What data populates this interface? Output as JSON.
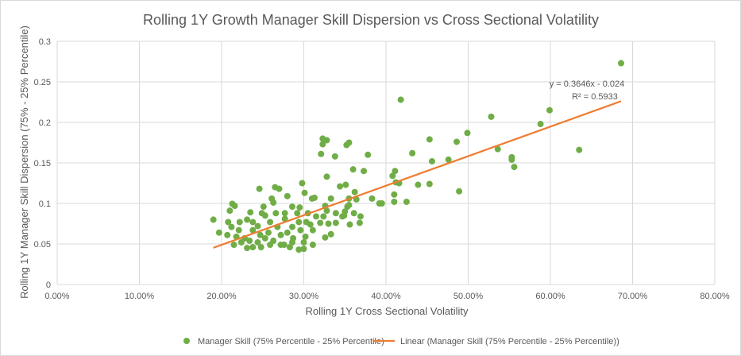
{
  "chart_data": {
    "type": "scatter",
    "title": "Rolling 1Y Growth Manager Skill Dispersion vs Cross Sectional Volatility",
    "xlabel": "Rolling 1Y Cross Sectional Volatility",
    "ylabel": "Rolling 1Y Manager Skill Dispersion (75% - 25% Percentile)",
    "xlim": [
      0,
      0.8
    ],
    "ylim": [
      0,
      0.3
    ],
    "xticks": [
      0,
      0.1,
      0.2,
      0.3,
      0.4,
      0.5,
      0.6,
      0.7,
      0.8
    ],
    "xtick_labels": [
      "0.00%",
      "10.00%",
      "20.00%",
      "30.00%",
      "40.00%",
      "50.00%",
      "60.00%",
      "70.00%",
      "80.00%"
    ],
    "yticks": [
      0,
      0.05,
      0.1,
      0.15,
      0.2,
      0.25,
      0.3
    ],
    "ytick_labels": [
      "0",
      "0.05",
      "0.1",
      "0.15",
      "0.2",
      "0.25",
      "0.3"
    ],
    "grid": true,
    "legend_position": "bottom",
    "series": [
      {
        "name": "Manager Skill (75% Percentile - 25% Percentile)",
        "color": "#70ad47",
        "points": [
          [
            0.686,
            0.273
          ],
          [
            0.418,
            0.228
          ],
          [
            0.599,
            0.215
          ],
          [
            0.588,
            0.198
          ],
          [
            0.528,
            0.207
          ],
          [
            0.635,
            0.166
          ],
          [
            0.499,
            0.187
          ],
          [
            0.486,
            0.176
          ],
          [
            0.453,
            0.179
          ],
          [
            0.432,
            0.162
          ],
          [
            0.536,
            0.167
          ],
          [
            0.553,
            0.157
          ],
          [
            0.553,
            0.154
          ],
          [
            0.556,
            0.145
          ],
          [
            0.456,
            0.152
          ],
          [
            0.476,
            0.154
          ],
          [
            0.411,
            0.14
          ],
          [
            0.408,
            0.134
          ],
          [
            0.412,
            0.126
          ],
          [
            0.416,
            0.125
          ],
          [
            0.439,
            0.123
          ],
          [
            0.453,
            0.124
          ],
          [
            0.489,
            0.115
          ],
          [
            0.41,
            0.111
          ],
          [
            0.41,
            0.102
          ],
          [
            0.425,
            0.102
          ],
          [
            0.395,
            0.1
          ],
          [
            0.323,
            0.18
          ],
          [
            0.328,
            0.178
          ],
          [
            0.323,
            0.173
          ],
          [
            0.352,
            0.172
          ],
          [
            0.355,
            0.175
          ],
          [
            0.321,
            0.161
          ],
          [
            0.338,
            0.158
          ],
          [
            0.378,
            0.16
          ],
          [
            0.36,
            0.142
          ],
          [
            0.373,
            0.14
          ],
          [
            0.328,
            0.133
          ],
          [
            0.298,
            0.125
          ],
          [
            0.344,
            0.121
          ],
          [
            0.351,
            0.123
          ],
          [
            0.301,
            0.113
          ],
          [
            0.362,
            0.114
          ],
          [
            0.246,
            0.118
          ],
          [
            0.265,
            0.12
          ],
          [
            0.27,
            0.118
          ],
          [
            0.28,
            0.109
          ],
          [
            0.261,
            0.106
          ],
          [
            0.263,
            0.101
          ],
          [
            0.31,
            0.106
          ],
          [
            0.313,
            0.107
          ],
          [
            0.333,
            0.106
          ],
          [
            0.355,
            0.106
          ],
          [
            0.364,
            0.105
          ],
          [
            0.383,
            0.106
          ],
          [
            0.392,
            0.1
          ],
          [
            0.213,
            0.0995
          ],
          [
            0.216,
            0.097
          ],
          [
            0.21,
            0.091
          ],
          [
            0.251,
            0.096
          ],
          [
            0.286,
            0.096
          ],
          [
            0.295,
            0.095
          ],
          [
            0.235,
            0.089
          ],
          [
            0.19,
            0.08
          ],
          [
            0.197,
            0.064
          ],
          [
            0.208,
            0.077
          ],
          [
            0.212,
            0.071
          ],
          [
            0.207,
            0.061
          ],
          [
            0.222,
            0.077
          ],
          [
            0.355,
            0.098
          ],
          [
            0.353,
            0.096
          ],
          [
            0.326,
            0.097
          ],
          [
            0.328,
            0.091
          ],
          [
            0.339,
            0.088
          ],
          [
            0.349,
            0.085
          ],
          [
            0.356,
            0.074
          ],
          [
            0.361,
            0.088
          ],
          [
            0.368,
            0.076
          ],
          [
            0.369,
            0.084
          ],
          [
            0.33,
            0.075
          ],
          [
            0.326,
            0.058
          ],
          [
            0.333,
            0.062
          ],
          [
            0.305,
            0.088
          ],
          [
            0.303,
            0.077
          ],
          [
            0.311,
            0.067
          ],
          [
            0.3,
            0.052
          ],
          [
            0.311,
            0.049
          ],
          [
            0.294,
            0.043
          ],
          [
            0.3,
            0.044
          ],
          [
            0.286,
            0.052
          ],
          [
            0.276,
            0.049
          ],
          [
            0.248,
            0.046
          ],
          [
            0.231,
            0.045
          ],
          [
            0.215,
            0.049
          ],
          [
            0.218,
            0.059
          ],
          [
            0.238,
            0.067
          ],
          [
            0.244,
            0.072
          ],
          [
            0.253,
            0.085
          ],
          [
            0.266,
            0.088
          ],
          [
            0.259,
            0.077
          ],
          [
            0.268,
            0.071
          ],
          [
            0.277,
            0.081
          ],
          [
            0.28,
            0.064
          ],
          [
            0.287,
            0.057
          ],
          [
            0.253,
            0.057
          ],
          [
            0.263,
            0.054
          ],
          [
            0.234,
            0.054
          ],
          [
            0.224,
            0.052
          ],
          [
            0.244,
            0.052
          ],
          [
            0.238,
            0.077
          ],
          [
            0.231,
            0.08
          ],
          [
            0.249,
            0.088
          ],
          [
            0.257,
            0.064
          ],
          [
            0.247,
            0.061
          ],
          [
            0.272,
            0.061
          ],
          [
            0.294,
            0.077
          ],
          [
            0.292,
            0.088
          ],
          [
            0.315,
            0.084
          ],
          [
            0.32,
            0.076
          ],
          [
            0.308,
            0.074
          ],
          [
            0.286,
            0.071
          ],
          [
            0.277,
            0.088
          ],
          [
            0.221,
            0.067
          ],
          [
            0.228,
            0.057
          ],
          [
            0.238,
            0.046
          ],
          [
            0.259,
            0.049
          ],
          [
            0.272,
            0.049
          ],
          [
            0.283,
            0.046
          ],
          [
            0.302,
            0.059
          ],
          [
            0.296,
            0.067
          ],
          [
            0.324,
            0.084
          ],
          [
            0.339,
            0.076
          ],
          [
            0.347,
            0.084
          ],
          [
            0.35,
            0.09
          ]
        ]
      }
    ],
    "trendline": {
      "name": "Linear (Manager Skill (75% Percentile - 25% Percentile))",
      "color": "#ed7d31",
      "slope": 0.3646,
      "intercept": -0.024,
      "x_range": [
        0.19,
        0.686
      ],
      "equation": "y = 0.3646x - 0.024",
      "r2": "R² = 0.5933"
    }
  }
}
